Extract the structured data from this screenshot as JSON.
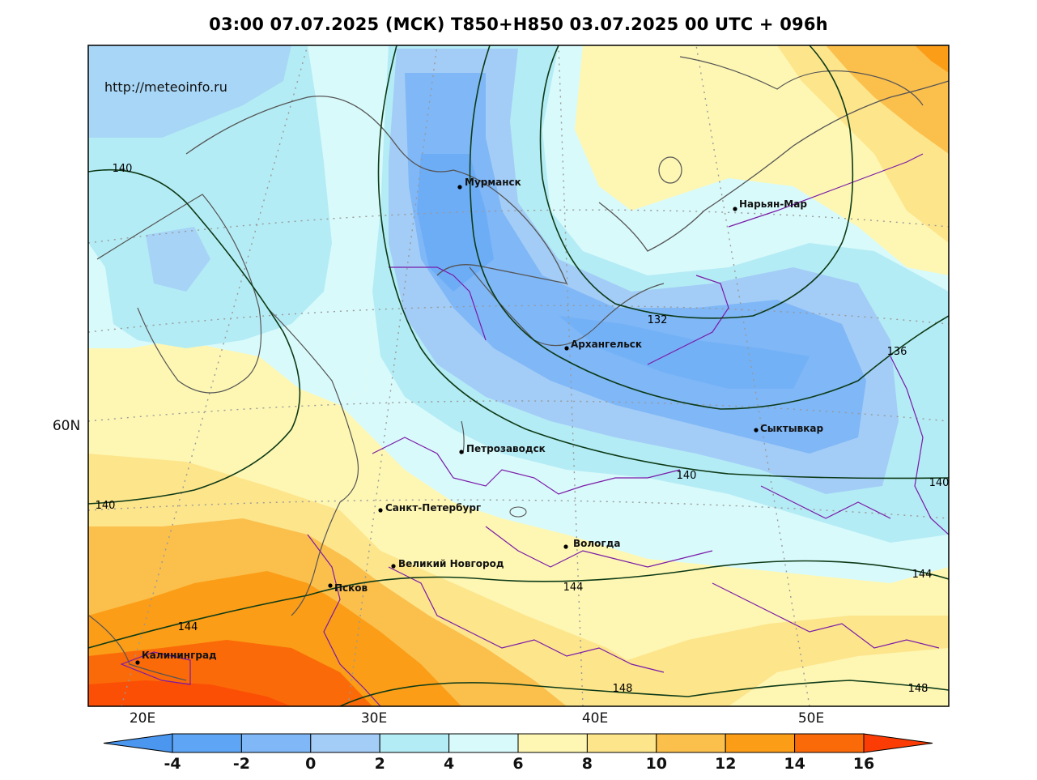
{
  "title": "03:00 07.07.2025 (МСК) T850+H850 03.07.2025 00 UTC + 096h",
  "source_url": "http://meteoinfo.ru",
  "lon_ticks": [
    "20E",
    "30E",
    "40E",
    "50E"
  ],
  "lat_ticks": [
    "60N"
  ],
  "cities": [
    {
      "id": "murmansk",
      "name": "Мурманск"
    },
    {
      "id": "naryan-mar",
      "name": "Нарьян-Мар"
    },
    {
      "id": "arkhangelsk",
      "name": "Архангельск"
    },
    {
      "id": "syktyvkar",
      "name": "Сыктывкар"
    },
    {
      "id": "petrozavodsk",
      "name": "Петрозаводск"
    },
    {
      "id": "saint-petersburg",
      "name": "Санкт-Петербург"
    },
    {
      "id": "vologda",
      "name": "Вологда"
    },
    {
      "id": "veliky-novgorod",
      "name": "Великий Новгород"
    },
    {
      "id": "pskov",
      "name": "Псков"
    },
    {
      "id": "kaliningrad",
      "name": "Калининград"
    }
  ],
  "isohypse_labels": [
    "140",
    "140",
    "132",
    "136",
    "140",
    "140",
    "144",
    "144",
    "144",
    "148",
    "148"
  ],
  "colorbar": {
    "ticks": [
      "-4",
      "-2",
      "0",
      "2",
      "4",
      "6",
      "8",
      "10",
      "12",
      "14",
      "16"
    ],
    "colors": [
      "#4b97f0",
      "#5ea6f5",
      "#7fb7f7",
      "#a3cdf6",
      "#b4ecf5",
      "#d9fafb",
      "#fef7b3",
      "#fde58c",
      "#fbbf4c",
      "#fb9d16",
      "#fb6a08",
      "#fb3d05"
    ]
  }
}
